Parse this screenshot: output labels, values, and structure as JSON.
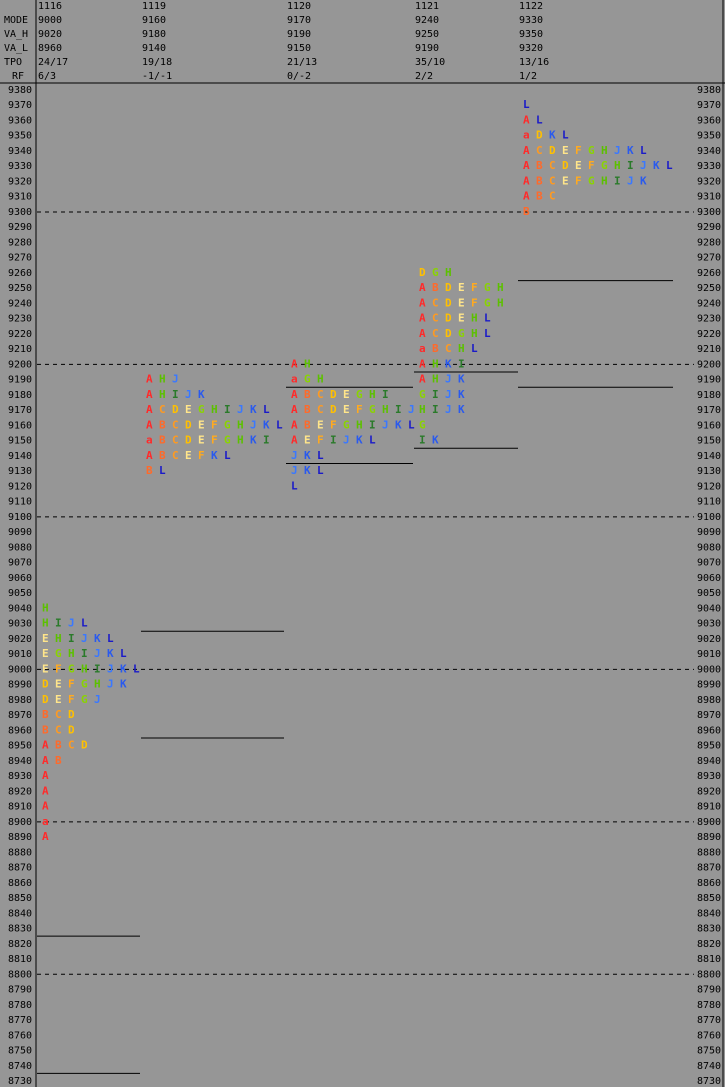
{
  "header": {
    "row_labels": [
      "MODE",
      "VA_H",
      "VA_L",
      "TPO",
      "RF"
    ],
    "days": [
      {
        "date": "1116",
        "values": [
          "9000",
          "9020",
          "8960",
          "24/17",
          "6/3"
        ]
      },
      {
        "date": "1119",
        "values": [
          "9160",
          "9180",
          "9140",
          "19/18",
          "-1/-1"
        ]
      },
      {
        "date": "1120",
        "values": [
          "9170",
          "9190",
          "9150",
          "21/13",
          "0/-2"
        ]
      },
      {
        "date": "1121",
        "values": [
          "9240",
          "9250",
          "9190",
          "35/10",
          "2/2"
        ]
      },
      {
        "date": "1122",
        "values": [
          "9330",
          "9350",
          "9320",
          "13/16",
          "1/2"
        ]
      }
    ]
  },
  "price_axis": {
    "ylim": [
      9380,
      8730
    ],
    "yticks": [
      9380,
      9370,
      9360,
      9350,
      9340,
      9330,
      9320,
      9310,
      9300,
      9290,
      9280,
      9270,
      9260,
      9250,
      9240,
      9230,
      9220,
      9210,
      9200,
      9190,
      9180,
      9170,
      9160,
      9150,
      9140,
      9130,
      9120,
      9110,
      9100,
      9090,
      9080,
      9070,
      9060,
      9050,
      9040,
      9030,
      9020,
      9010,
      9000,
      8990,
      8980,
      8970,
      8960,
      8950,
      8940,
      8930,
      8920,
      8910,
      8900,
      8890,
      8880,
      8870,
      8860,
      8850,
      8840,
      8830,
      8820,
      8810,
      8800,
      8790,
      8780,
      8770,
      8760,
      8750,
      8740,
      8730
    ]
  },
  "letter_colors": {
    "A": "#ff2a2a",
    "a": "#ff2a2a",
    "B": "#ff6a2a",
    "C": "#ff9a20",
    "D": "#ffc000",
    "E": "#ffe58a",
    "F": "#ffaa20",
    "G": "#8ad400",
    "H": "#5cc000",
    "I": "#2a7a2a",
    "J": "#3a78ff",
    "K": "#2a5aee",
    "L": "#1a1ac8"
  },
  "profiles": [
    {
      "rows": [
        {
          "price": 9040,
          "letters": "H"
        },
        {
          "price": 9030,
          "letters": "HIJL"
        },
        {
          "price": 9020,
          "letters": "EHIJKL"
        },
        {
          "price": 9010,
          "letters": "EGHIJKL"
        },
        {
          "price": 9000,
          "letters": "EFGHIJKL"
        },
        {
          "price": 8990,
          "letters": "DEFGHJK"
        },
        {
          "price": 8980,
          "letters": "DEFGJ"
        },
        {
          "price": 8970,
          "letters": "BCD"
        },
        {
          "price": 8960,
          "letters": "BCD"
        },
        {
          "price": 8950,
          "letters": "ABCD"
        },
        {
          "price": 8940,
          "letters": "AB"
        },
        {
          "price": 8930,
          "letters": "A"
        },
        {
          "price": 8920,
          "letters": "A"
        },
        {
          "price": 8910,
          "letters": "A"
        },
        {
          "price": 8900,
          "letters": "a"
        },
        {
          "price": 8890,
          "letters": "A"
        }
      ],
      "va_lines": [
        8820,
        8740
      ]
    },
    {
      "rows": [
        {
          "price": 9190,
          "letters": "AHJ"
        },
        {
          "price": 9180,
          "letters": "AHIJK"
        },
        {
          "price": 9170,
          "letters": "ACDEGHIJKL"
        },
        {
          "price": 9160,
          "letters": "ABCDEFGHJKL"
        },
        {
          "price": 9150,
          "letters": "aBCDEFGHKI"
        },
        {
          "price": 9140,
          "letters": "ABCEFKL"
        },
        {
          "price": 9130,
          "letters": "BL"
        }
      ],
      "va_lines": [
        9020,
        8960
      ]
    },
    {
      "rows": [
        {
          "price": 9200,
          "letters": "AH"
        },
        {
          "price": 9190,
          "letters": "aGH"
        },
        {
          "price": 9180,
          "letters": "ABCDEGHI"
        },
        {
          "price": 9170,
          "letters": "ABCDEFGHIJ"
        },
        {
          "price": 9160,
          "letters": "ABEFGHIJKL"
        },
        {
          "price": 9150,
          "letters": "AEFIJKL"
        },
        {
          "price": 9140,
          "letters": "JKL"
        },
        {
          "price": 9130,
          "letters": "JKL"
        },
        {
          "price": 9120,
          "letters": "L"
        }
      ],
      "va_lines": [
        9180,
        9140
      ]
    },
    {
      "rows": [
        {
          "price": 9260,
          "letters": "DGH"
        },
        {
          "price": 9250,
          "letters": "ABDEFGH"
        },
        {
          "price": 9240,
          "letters": "ACDEFGH"
        },
        {
          "price": 9230,
          "letters": "ACDEHL"
        },
        {
          "price": 9220,
          "letters": "ACDGHL"
        },
        {
          "price": 9210,
          "letters": "aBCHL"
        },
        {
          "price": 9200,
          "letters": "AHKI"
        },
        {
          "price": 9190,
          "letters": "AHJK"
        },
        {
          "price": 9180,
          "letters": "GIJK"
        },
        {
          "price": 9170,
          "letters": "HIJK"
        },
        {
          "price": 9160,
          "letters": "G"
        },
        {
          "price": 9150,
          "letters": "IK"
        }
      ],
      "va_lines": [
        9190,
        9150
      ]
    },
    {
      "rows": [
        {
          "price": 9370,
          "letters": "L"
        },
        {
          "price": 9360,
          "letters": "AL"
        },
        {
          "price": 9350,
          "letters": "aDKL"
        },
        {
          "price": 9340,
          "letters": "ACDEFGHJKL"
        },
        {
          "price": 9330,
          "letters": "ABCDEFGHIJKL"
        },
        {
          "price": 9320,
          "letters": "ABCEFGHIJK"
        },
        {
          "price": 9310,
          "letters": "ABC"
        },
        {
          "price": 9300,
          "letters": "B"
        }
      ],
      "va_lines": [
        9250,
        9190
      ]
    }
  ]
}
